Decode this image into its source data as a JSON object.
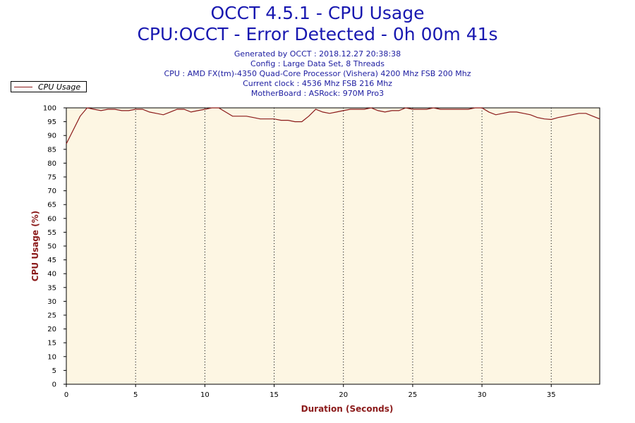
{
  "header": {
    "title_line1": "OCCT 4.5.1 - CPU Usage",
    "title_line2": "CPU:OCCT - Error Detected - 0h 00m 41s",
    "info_lines": [
      "Generated by OCCT : 2018.12.27 20:38:38",
      "Config : Large Data Set, 8 Threads",
      "CPU : AMD FX(tm)-4350 Quad-Core Processor (Vishera) 4200 Mhz FSB 200 Mhz",
      "Current clock : 4536 Mhz FSB 216 Mhz",
      "MotherBoard : ASRock: 970M Pro3"
    ]
  },
  "colors": {
    "title": "#1818b0",
    "line": "#8b1a1a",
    "plot_background": "#fdf6e3",
    "axis_title": "#8b1a1a"
  },
  "chart_data": {
    "type": "line",
    "title": "OCCT 4.5.1 - CPU Usage",
    "xlabel": "Duration (Seconds)",
    "ylabel": "CPU Usage (%)",
    "xlim": [
      0,
      38.5
    ],
    "ylim": [
      0,
      100
    ],
    "x_ticks": [
      0,
      5,
      10,
      15,
      20,
      25,
      30,
      35
    ],
    "y_ticks": [
      0,
      5,
      10,
      15,
      20,
      25,
      30,
      35,
      40,
      45,
      50,
      55,
      60,
      65,
      70,
      75,
      80,
      85,
      90,
      95,
      100
    ],
    "grid": "vertical dotted lines at x ticks",
    "legend": "top-left, outside plot",
    "series": [
      {
        "name": "CPU Usage",
        "x": [
          0,
          1,
          1.5,
          2,
          2.5,
          3,
          3.5,
          4,
          4.5,
          5,
          5.5,
          6,
          6.5,
          7,
          7.5,
          8,
          8.5,
          9,
          9.5,
          10,
          10.5,
          11,
          11.5,
          12,
          12.5,
          13,
          13.5,
          14,
          14.5,
          15,
          15.5,
          16,
          16.5,
          17,
          17.5,
          18,
          18.5,
          19,
          19.5,
          20,
          20.5,
          21,
          21.5,
          22,
          22.5,
          23,
          23.5,
          24,
          24.5,
          25,
          25.5,
          26,
          26.5,
          27,
          27.5,
          28,
          28.5,
          29,
          29.5,
          30,
          30.5,
          31,
          31.5,
          32,
          32.5,
          33,
          33.5,
          34,
          34.5,
          35,
          35.5,
          36,
          36.5,
          37,
          37.5,
          38,
          38.5
        ],
        "y": [
          87,
          97,
          100,
          99.5,
          99,
          99.5,
          99.5,
          99,
          99,
          99.5,
          99.5,
          98.5,
          98,
          97.5,
          98.5,
          99.5,
          99.5,
          98.5,
          99,
          99.5,
          100,
          100,
          98.5,
          97,
          97,
          97,
          96.5,
          96,
          96,
          96,
          95.5,
          95.5,
          95,
          95,
          97,
          99.5,
          98.5,
          98,
          98.5,
          99,
          99.5,
          99.5,
          99.5,
          100,
          99,
          98.5,
          99,
          99,
          100,
          99.5,
          99.5,
          99.5,
          100,
          99.5,
          99.5,
          99.5,
          99.5,
          99.5,
          100,
          100,
          98.5,
          97.5,
          98,
          98.5,
          98.5,
          98,
          97.5,
          96.5,
          96,
          95.8,
          96.5,
          97,
          97.5,
          98,
          98,
          97,
          96
        ]
      }
    ]
  }
}
